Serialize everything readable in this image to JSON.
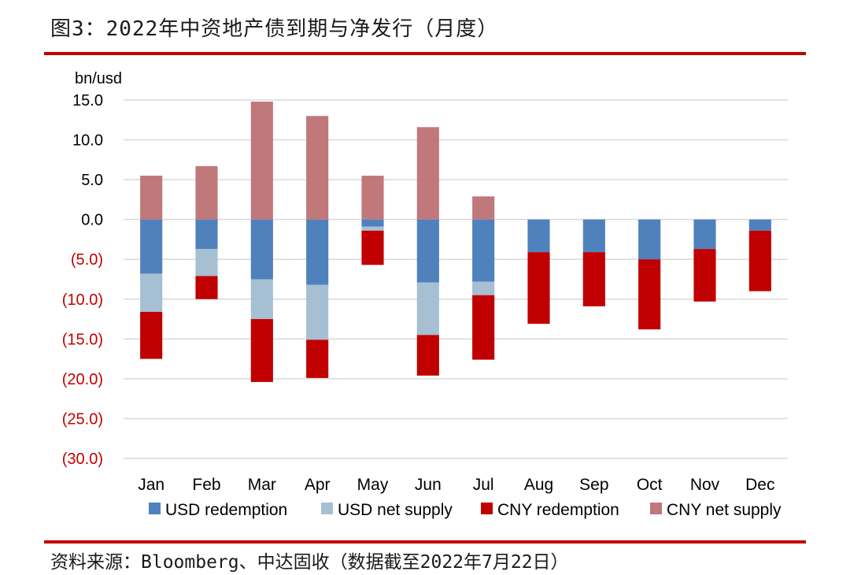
{
  "figure_title": "图3：2022年中资地产债到期与净发行（月度）",
  "source_note": "资料来源：Bloomberg、中达固收（数据截至2022年7月22日）",
  "colors": {
    "usd_redemption": "#4f81bd",
    "usd_net_supply": "#a6bfd3",
    "cny_redemption": "#c00000",
    "cny_net_supply": "#c0787b",
    "negative_tick": "#c00000",
    "positive_tick": "#000000",
    "rule": "#c00000"
  },
  "chart_data": {
    "type": "bar",
    "stacked": true,
    "ylabel": "bn/usd",
    "ylim": [
      -30,
      15
    ],
    "y_ticks": [
      {
        "value": 15,
        "label": "15.0"
      },
      {
        "value": 10,
        "label": "10.0"
      },
      {
        "value": 5,
        "label": "5.0"
      },
      {
        "value": 0,
        "label": "0.0"
      },
      {
        "value": -5,
        "label": "(5.0)"
      },
      {
        "value": -10,
        "label": "(10.0)"
      },
      {
        "value": -15,
        "label": "(15.0)"
      },
      {
        "value": -20,
        "label": "(20.0)"
      },
      {
        "value": -25,
        "label": "(25.0)"
      },
      {
        "value": -30,
        "label": "(30.0)"
      }
    ],
    "grid": true,
    "legend_position": "bottom",
    "categories": [
      "Jan",
      "Feb",
      "Mar",
      "Apr",
      "May",
      "Jun",
      "Jul",
      "Aug",
      "Sep",
      "Oct",
      "Nov",
      "Dec"
    ],
    "series": [
      {
        "name": "USD redemption",
        "color_key": "usd_redemption",
        "values": [
          -6.8,
          -3.7,
          -7.5,
          -8.2,
          -0.9,
          -7.9,
          -7.8,
          -4.1,
          -4.1,
          -5.0,
          -3.7,
          -1.4
        ]
      },
      {
        "name": "USD net supply",
        "color_key": "usd_net_supply",
        "values": [
          -4.8,
          -3.4,
          -5.0,
          -6.9,
          -0.5,
          -6.6,
          -1.7,
          0,
          0,
          0,
          0,
          0
        ]
      },
      {
        "name": "CNY redemption",
        "color_key": "cny_redemption",
        "values": [
          -5.9,
          -2.9,
          -7.9,
          -4.8,
          -4.3,
          -5.1,
          -8.1,
          -9.0,
          -6.8,
          -8.8,
          -6.6,
          -7.6
        ]
      },
      {
        "name": "CNY net supply",
        "color_key": "cny_net_supply",
        "values": [
          5.5,
          6.7,
          14.8,
          13.0,
          5.5,
          11.6,
          2.9,
          0,
          0,
          0,
          0,
          0
        ]
      }
    ]
  }
}
